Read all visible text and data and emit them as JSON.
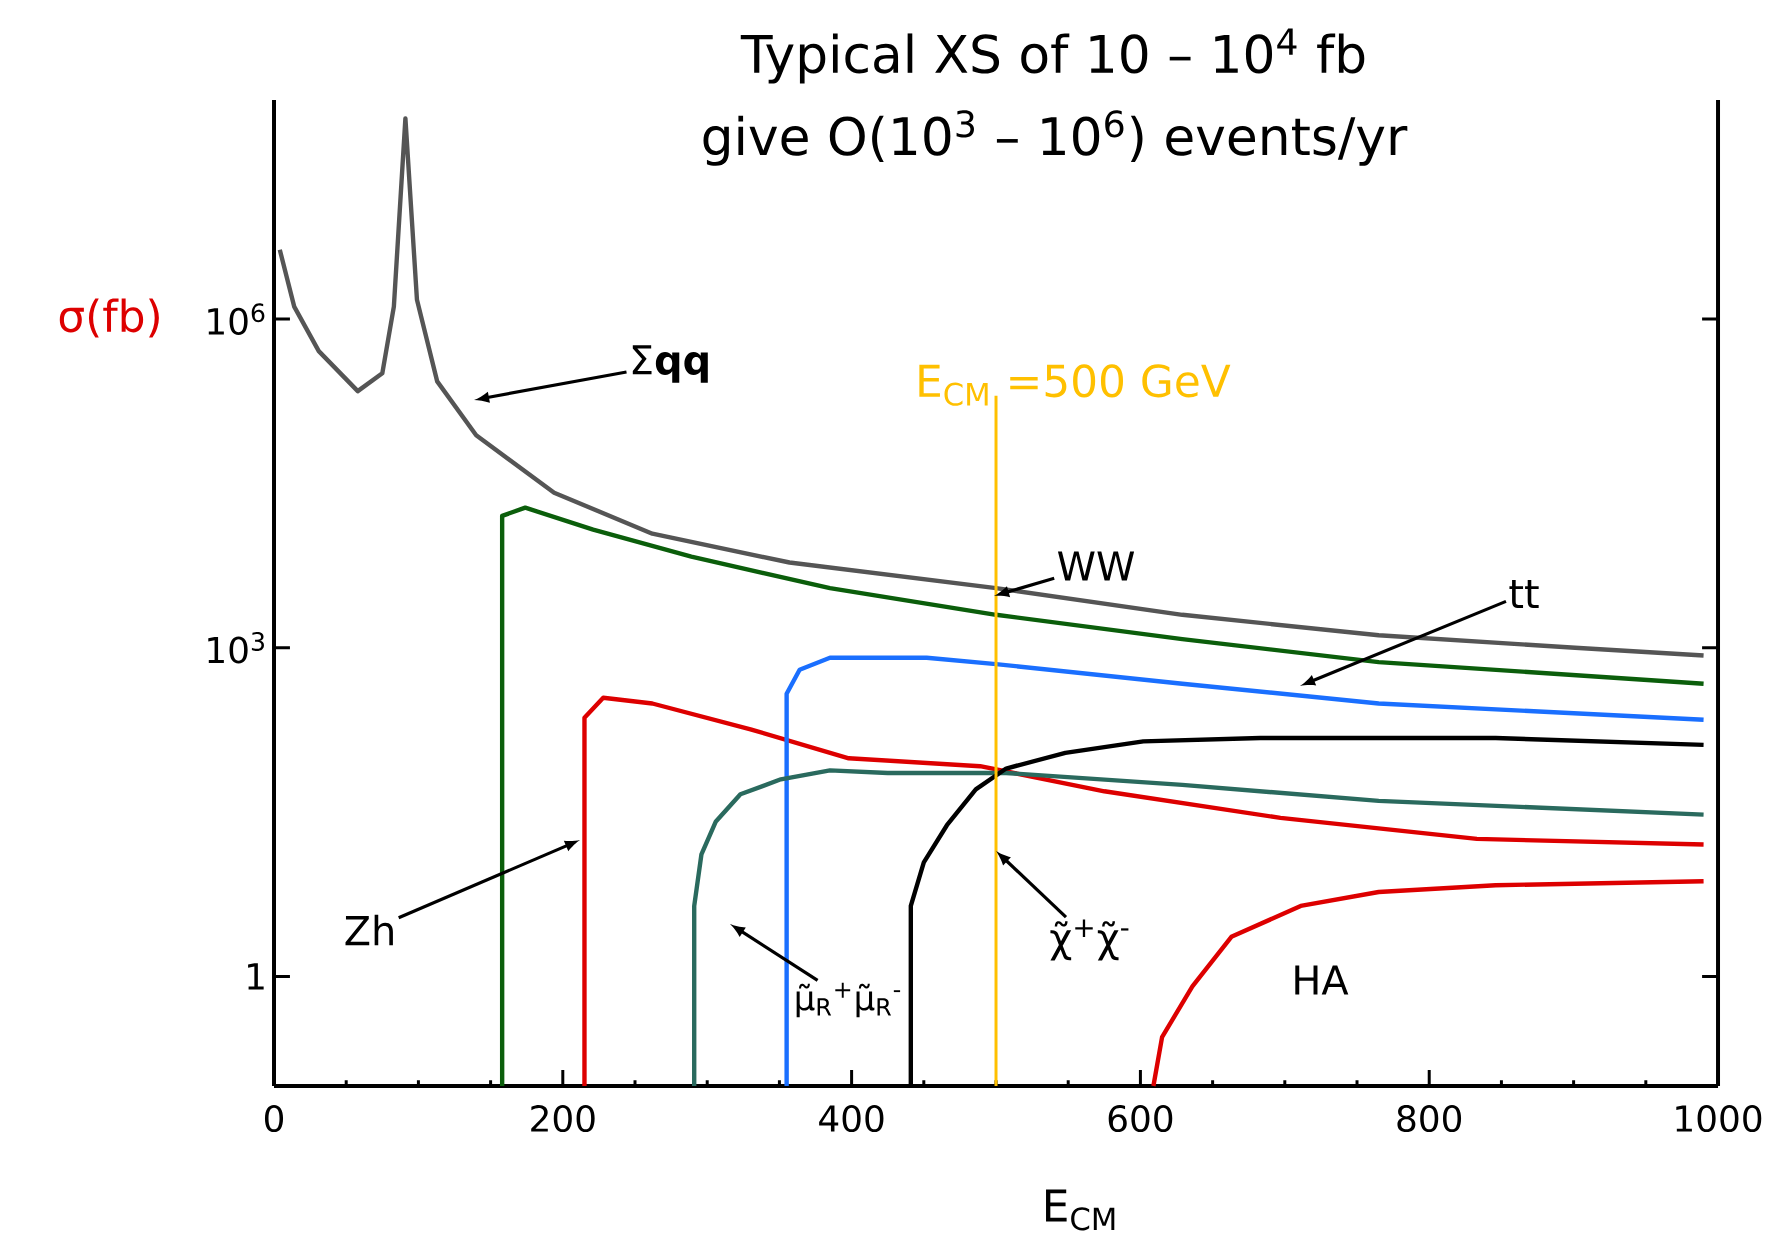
{
  "chart_data": {
    "type": "line",
    "title": "Typical XS of 10 – 10$^{4}$ fb",
    "subtitle": "give O(10$^{3}$ – 10$^{6}$) events/yr",
    "xlabel": "E$_{CM}$",
    "ylabel": "σ(fb)",
    "log": "y",
    "xlim": [
      0,
      1000
    ],
    "ylim": [
      0.1,
      100000000
    ],
    "xticks": [
      0,
      200,
      400,
      600,
      800,
      1000
    ],
    "yticks": [
      1,
      {
        "value": 1000,
        "label": "10$^{3}$"
      },
      {
        "value": 1000000,
        "label": "10$^{6}$"
      }
    ],
    "marker": "none",
    "line_style": "solid",
    "series": [
      {
        "color": "#555555",
        "x": [
          4,
          14,
          31,
          58,
          75,
          83,
          91,
          99,
          113,
          140,
          194,
          262,
          357,
          500,
          629,
          765,
          901,
          990
        ],
        "values": [
          4300000,
          1300000,
          510000,
          220000,
          320000,
          1300000,
          68000000,
          1500000,
          270000,
          87000,
          26000,
          11000,
          6000,
          3500,
          2000,
          1300,
          1000,
          850
        ]
      },
      {
        "color": "#0b5e0b",
        "x": [
          158,
          158,
          174,
          221,
          289,
          385,
          500,
          629,
          765,
          990
        ],
        "values": [
          0.1,
          16000,
          19000,
          12000,
          6800,
          3500,
          2000,
          1200,
          740,
          470
        ]
      },
      {
        "color": "#dd0000",
        "x": [
          215,
          215,
          228,
          262,
          330,
          398,
          489,
          575,
          697,
          833,
          990
        ],
        "values": [
          0.1,
          230,
          350,
          310,
          180,
          98,
          83,
          49,
          28,
          18,
          16
        ]
      },
      {
        "color": "#1a6fff",
        "x": [
          355,
          355,
          364,
          385,
          452,
          500,
          629,
          765,
          990
        ],
        "values": [
          0.1,
          380,
          630,
          810,
          810,
          710,
          470,
          310,
          220
        ]
      },
      {
        "color": "#2a6a5e",
        "x": [
          291,
          291,
          296,
          306,
          323,
          351,
          385,
          425,
          507,
          629,
          765,
          990
        ],
        "values": [
          0.1,
          4.4,
          13,
          26,
          46,
          63,
          76,
          72,
          72,
          56,
          40,
          30
        ]
      },
      {
        "color": "#000000",
        "x": [
          441,
          441,
          450,
          466,
          486,
          507,
          548,
          602,
          683,
          846,
          990
        ],
        "values": [
          0.1,
          4.4,
          11,
          24,
          51,
          79,
          110,
          140,
          150,
          150,
          130
        ]
      },
      {
        "color": "#dd0000",
        "x": [
          609,
          615,
          636,
          663,
          711,
          765,
          846,
          990
        ],
        "values": [
          0.1,
          0.28,
          0.81,
          2.3,
          4.4,
          5.9,
          6.8,
          7.4
        ]
      }
    ],
    "ref_lines": [
      {
        "axis": "x",
        "value": 500,
        "label": "E$_{CM}$ =500 GeV",
        "color": "#ffc000"
      }
    ],
    "annotations": [
      "Σ**qq**",
      "WW",
      "tt",
      "Zh",
      "μ̃$_{R}$$^{+}$μ̃$_{R}$$^{-}$",
      {
        "text": "χ̃$^{+}$χ̃$^{-}$",
        "x": 500,
        "y": 14
      },
      "HA"
    ]
  }
}
